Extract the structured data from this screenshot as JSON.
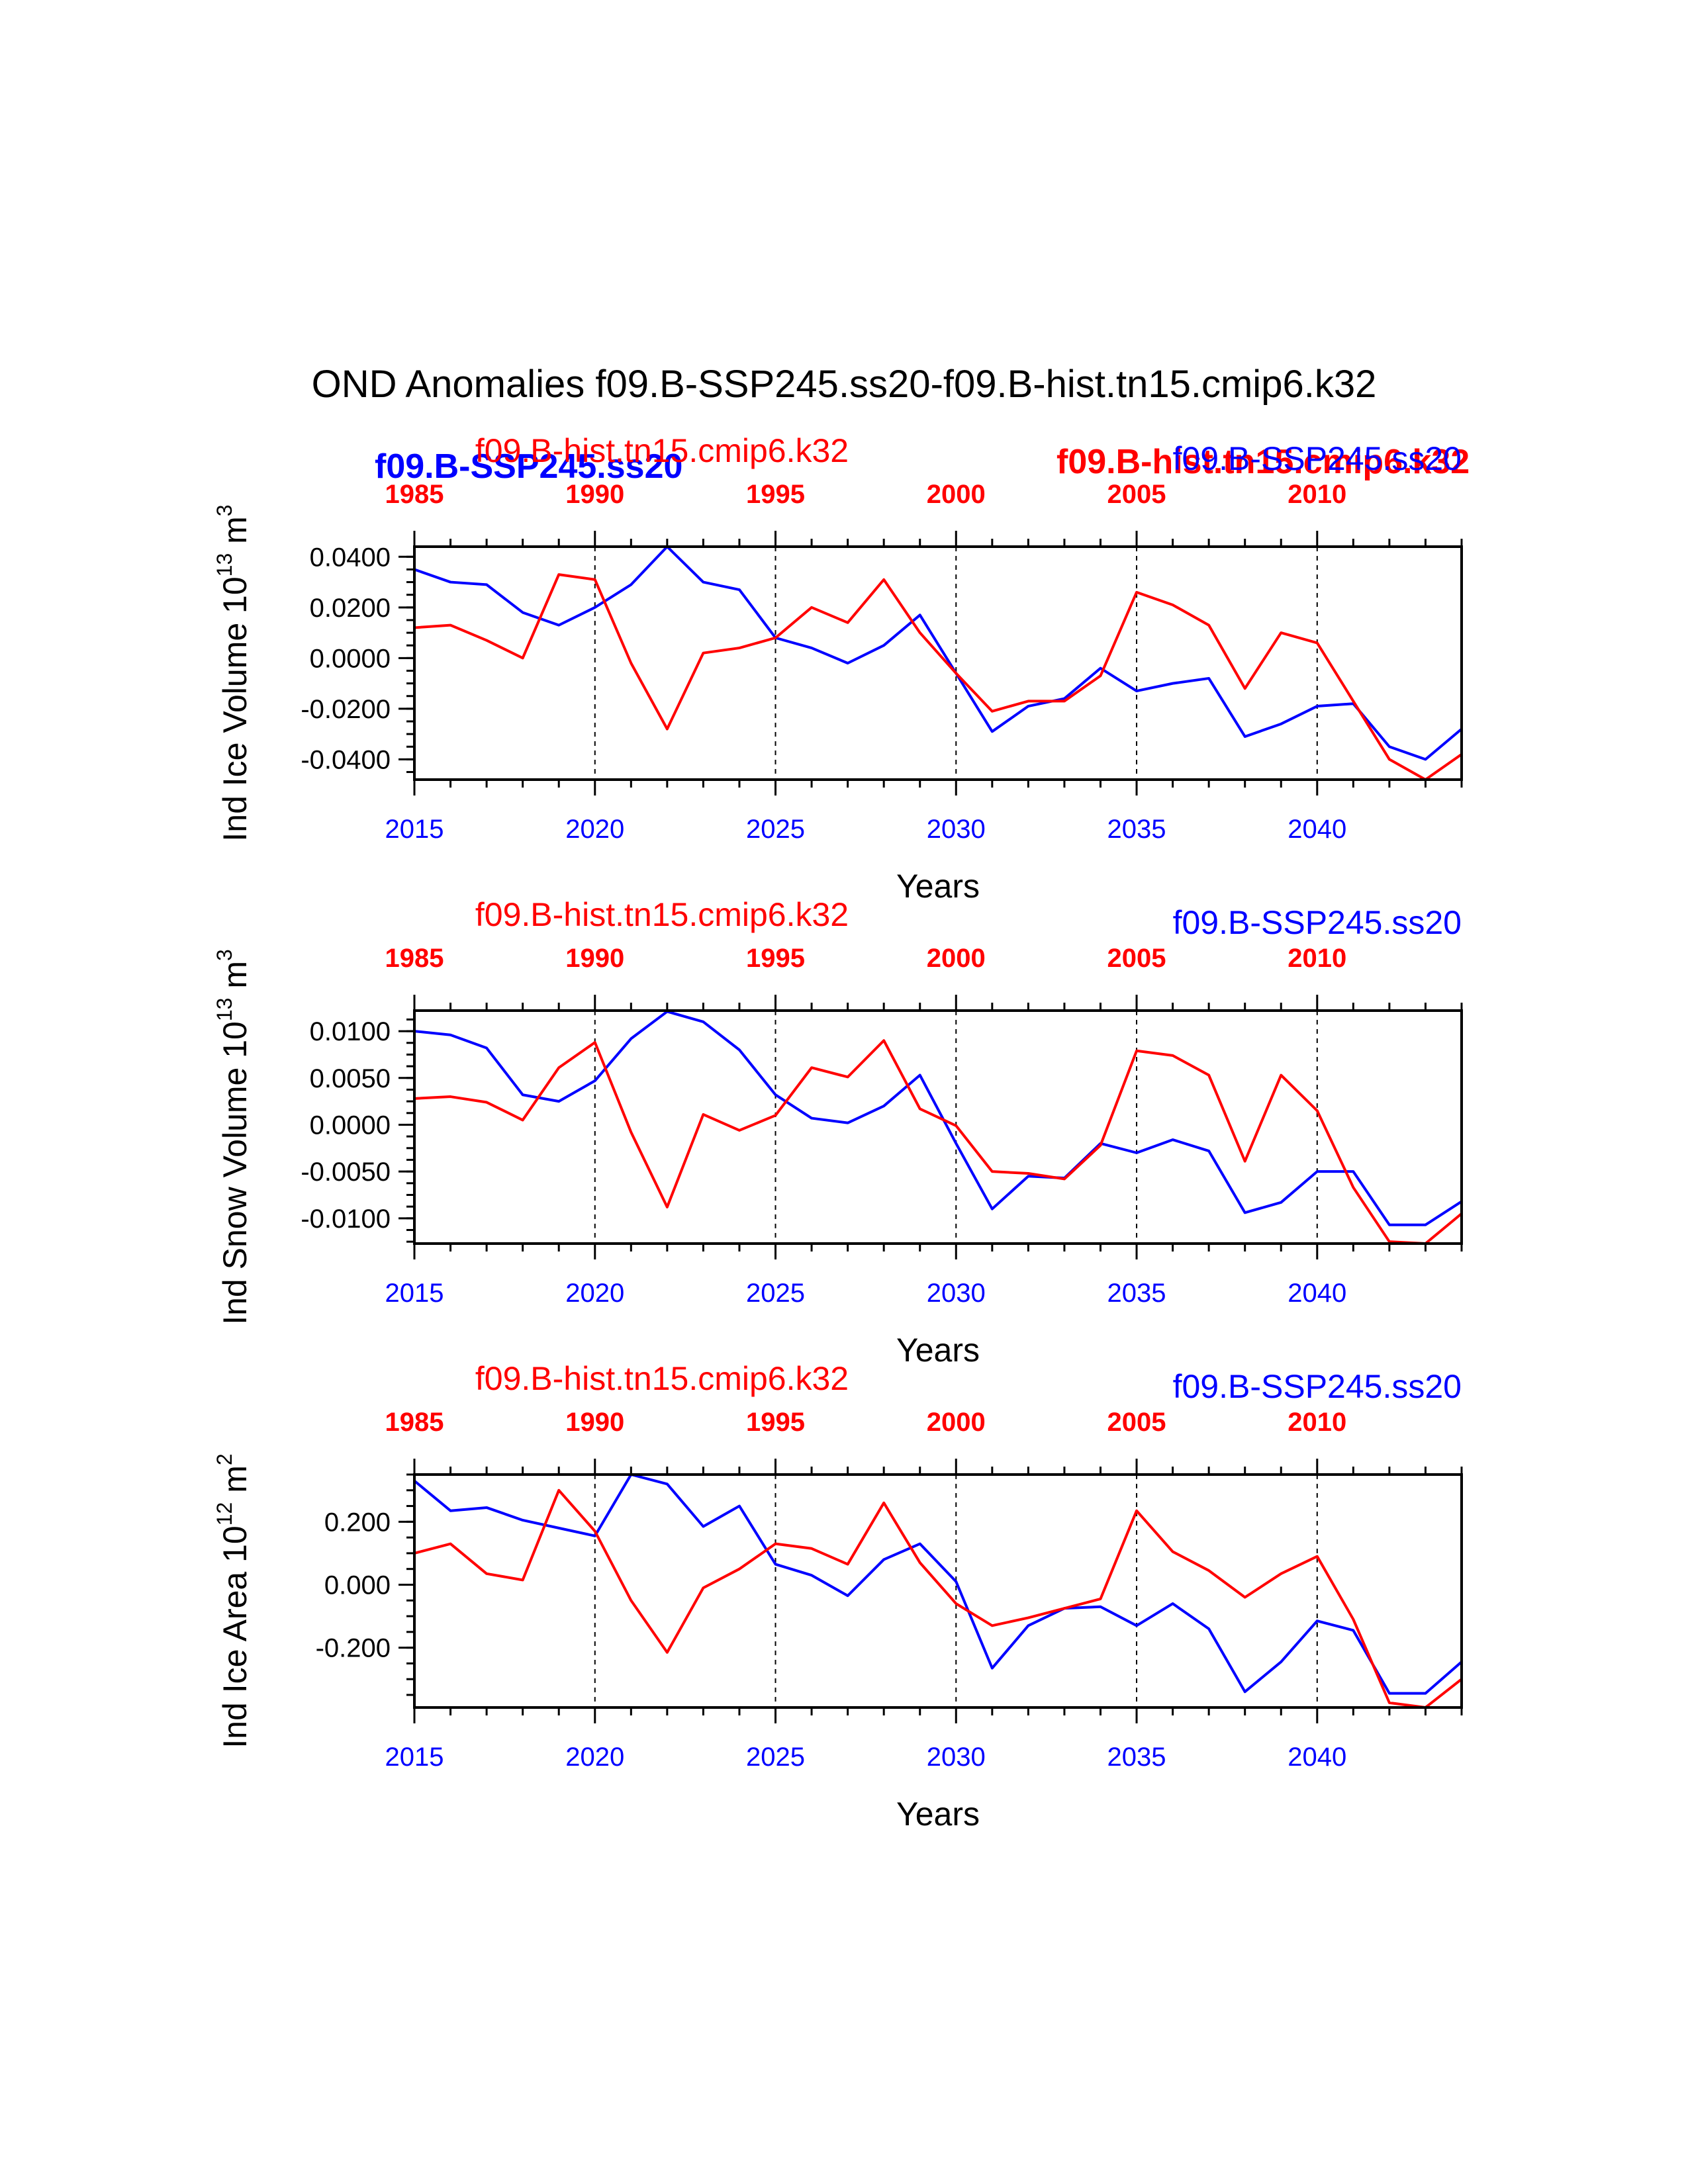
{
  "title": "OND Anomalies f09.B-SSP245.ss20-f09.B-hist.tn15.cmip6.k32",
  "colors": {
    "ssp": "#0000ff",
    "hist": "#ff0000",
    "axis": "#000000"
  },
  "overlay_labels": {
    "bold_ssp": "f09.B-SSP245.ss20",
    "bold_hist": "f09.B-hist.tn15.cmip6.k32"
  },
  "chart_data": [
    {
      "type": "line",
      "ylabel": "Ind Ice Volume 10",
      "ylabel_exp": "13",
      "ylabel_unit": " m",
      "ylabel_unit_exp": "3",
      "xlabel": "Years",
      "ylim": [
        -0.048,
        0.044
      ],
      "yticks": [
        -0.04,
        -0.02,
        0.0,
        0.02,
        0.04
      ],
      "ytick_labels": [
        "-0.0400",
        "-0.0200",
        "0.0000",
        "0.0200",
        "0.0400"
      ],
      "bottom_ticks": [
        "2015",
        "2020",
        "2025",
        "2030",
        "2035",
        "2040"
      ],
      "top_ticks": [
        "1985",
        "1990",
        "1995",
        "2000",
        "2005",
        "2010"
      ],
      "top_left_label": "f09.B-hist.tn15.cmip6.k32",
      "top_right_label": "f09.B-SSP245.ss20",
      "x": [
        2015,
        2016,
        2017,
        2018,
        2019,
        2020,
        2021,
        2022,
        2023,
        2024,
        2025,
        2026,
        2027,
        2028,
        2029,
        2030,
        2031,
        2032,
        2033,
        2034,
        2035,
        2036,
        2037,
        2038,
        2039,
        2040,
        2041,
        2042,
        2043,
        2044
      ],
      "series": [
        {
          "name": "f09.B-SSP245.ss20",
          "color": "#0000ff",
          "values": [
            0.035,
            0.03,
            0.029,
            0.018,
            0.013,
            0.02,
            0.029,
            0.044,
            0.03,
            0.027,
            0.008,
            0.004,
            -0.002,
            0.005,
            0.017,
            -0.006,
            -0.029,
            -0.019,
            -0.016,
            -0.004,
            -0.013,
            -0.01,
            -0.008,
            -0.031,
            -0.026,
            -0.019,
            -0.018,
            -0.035,
            -0.04,
            -0.028
          ]
        },
        {
          "name": "f09.B-hist.tn15.cmip6.k32",
          "color": "#ff0000",
          "values": [
            0.012,
            0.013,
            0.007,
            0.0,
            0.033,
            0.031,
            -0.002,
            -0.028,
            0.002,
            0.004,
            0.008,
            0.02,
            0.014,
            0.031,
            0.01,
            -0.006,
            -0.021,
            -0.017,
            -0.017,
            -0.007,
            0.026,
            0.021,
            0.013,
            -0.012,
            0.01,
            0.006,
            -0.017,
            -0.04,
            -0.048,
            -0.038
          ]
        }
      ]
    },
    {
      "type": "line",
      "ylabel": "Ind Snow Volume 10",
      "ylabel_exp": "13",
      "ylabel_unit": " m",
      "ylabel_unit_exp": "3",
      "xlabel": "Years",
      "ylim": [
        -0.0127,
        0.0122
      ],
      "yticks": [
        -0.01,
        -0.005,
        0.0,
        0.005,
        0.01
      ],
      "ytick_labels": [
        "-0.0100",
        "-0.0050",
        "0.0000",
        "0.0050",
        "0.0100"
      ],
      "bottom_ticks": [
        "2015",
        "2020",
        "2025",
        "2030",
        "2035",
        "2040"
      ],
      "top_ticks": [
        "1985",
        "1990",
        "1995",
        "2000",
        "2005",
        "2010"
      ],
      "top_left_label": "f09.B-hist.tn15.cmip6.k32",
      "top_right_label": "f09.B-SSP245.ss20",
      "x": [
        2015,
        2016,
        2017,
        2018,
        2019,
        2020,
        2021,
        2022,
        2023,
        2024,
        2025,
        2026,
        2027,
        2028,
        2029,
        2030,
        2031,
        2032,
        2033,
        2034,
        2035,
        2036,
        2037,
        2038,
        2039,
        2040,
        2041,
        2042,
        2043,
        2044
      ],
      "series": [
        {
          "name": "f09.B-SSP245.ss20",
          "color": "#0000ff",
          "values": [
            0.01,
            0.0096,
            0.0082,
            0.0032,
            0.0025,
            0.0047,
            0.0092,
            0.0121,
            0.011,
            0.008,
            0.0032,
            0.0007,
            0.0002,
            0.002,
            0.0053,
            -0.002,
            -0.009,
            -0.0055,
            -0.0057,
            -0.002,
            -0.003,
            -0.0016,
            -0.0028,
            -0.0094,
            -0.0083,
            -0.005,
            -0.005,
            -0.0107,
            -0.0107,
            -0.0082
          ]
        },
        {
          "name": "f09.B-hist.tn15.cmip6.k32",
          "color": "#ff0000",
          "values": [
            0.0028,
            0.003,
            0.0024,
            0.0005,
            0.0061,
            0.0088,
            -0.0008,
            -0.0088,
            0.0011,
            -0.0006,
            0.001,
            0.0061,
            0.0051,
            0.009,
            0.0017,
            -0.0001,
            -0.005,
            -0.0052,
            -0.0058,
            -0.0022,
            0.0079,
            0.0074,
            0.0053,
            -0.0039,
            0.0053,
            0.0015,
            -0.0067,
            -0.0125,
            -0.0127,
            -0.0095
          ]
        }
      ]
    },
    {
      "type": "line",
      "ylabel": "Ind Ice Area 10",
      "ylabel_exp": "12",
      "ylabel_unit": " m",
      "ylabel_unit_exp": "2",
      "xlabel": "Years",
      "ylim": [
        -0.39,
        0.35
      ],
      "yticks": [
        -0.2,
        0.0,
        0.2
      ],
      "ytick_labels": [
        "-0.200",
        "0.000",
        "0.200"
      ],
      "bottom_ticks": [
        "2015",
        "2020",
        "2025",
        "2030",
        "2035",
        "2040"
      ],
      "top_ticks": [
        "1985",
        "1990",
        "1995",
        "2000",
        "2005",
        "2010"
      ],
      "top_left_label": "f09.B-hist.tn15.cmip6.k32",
      "top_right_label": "f09.B-SSP245.ss20",
      "x": [
        2015,
        2016,
        2017,
        2018,
        2019,
        2020,
        2021,
        2022,
        2023,
        2024,
        2025,
        2026,
        2027,
        2028,
        2029,
        2030,
        2031,
        2032,
        2033,
        2034,
        2035,
        2036,
        2037,
        2038,
        2039,
        2040,
        2041,
        2042,
        2043,
        2044
      ],
      "series": [
        {
          "name": "f09.B-SSP245.ss20",
          "color": "#0000ff",
          "values": [
            0.33,
            0.235,
            0.245,
            0.205,
            0.18,
            0.155,
            0.35,
            0.32,
            0.185,
            0.25,
            0.065,
            0.03,
            -0.035,
            0.08,
            0.13,
            0.01,
            -0.265,
            -0.13,
            -0.075,
            -0.07,
            -0.13,
            -0.06,
            -0.14,
            -0.34,
            -0.245,
            -0.115,
            -0.145,
            -0.345,
            -0.345,
            -0.245
          ]
        },
        {
          "name": "f09.B-hist.tn15.cmip6.k32",
          "color": "#ff0000",
          "values": [
            0.1,
            0.13,
            0.035,
            0.015,
            0.3,
            0.17,
            -0.05,
            -0.215,
            -0.01,
            0.05,
            0.13,
            0.115,
            0.065,
            0.26,
            0.07,
            -0.06,
            -0.13,
            -0.105,
            -0.075,
            -0.045,
            0.235,
            0.105,
            0.045,
            -0.04,
            0.035,
            0.09,
            -0.11,
            -0.375,
            -0.39,
            -0.3
          ]
        }
      ]
    }
  ]
}
